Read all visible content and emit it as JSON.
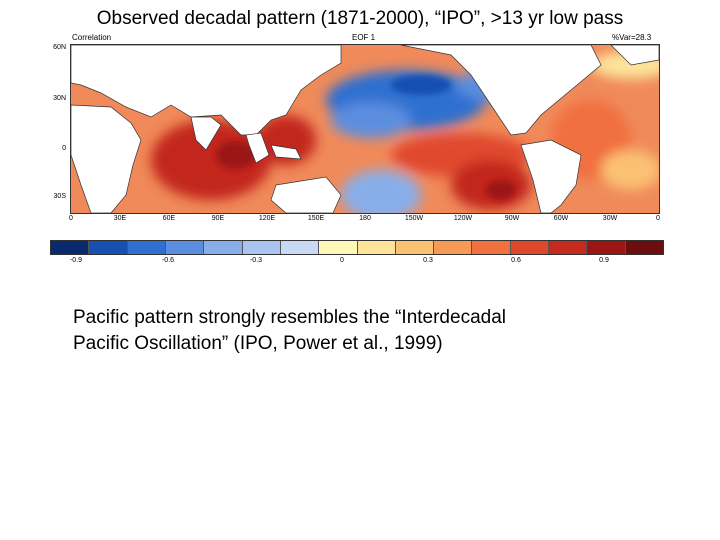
{
  "title": "Observed decadal pattern (1871-2000), “IPO”, >13 yr low pass",
  "map": {
    "left_label": "Correlation",
    "center_label": "EOF 1",
    "right_label": "%Var=28.3",
    "lat_labels": [
      "60N",
      "30N",
      "0",
      "30S"
    ],
    "lon_labels": [
      "0",
      "30E",
      "60E",
      "90E",
      "120E",
      "150E",
      "180",
      "150W",
      "120W",
      "90W",
      "60W",
      "30W",
      "0"
    ]
  },
  "colorbar": {
    "colors": [
      "#0a2a6e",
      "#1750b0",
      "#2f6fd0",
      "#5b8ee0",
      "#88aeea",
      "#a9c4f0",
      "#c8d9f6",
      "#fff7b8",
      "#fde49a",
      "#fbc173",
      "#f79a56",
      "#f0703f",
      "#e0482d",
      "#c62a1e",
      "#9d1512",
      "#6e0d0d"
    ],
    "labels": [
      "-0.9",
      "-0.6",
      "-0.3",
      "0",
      "0.3",
      "0.6",
      "0.9"
    ]
  },
  "note_lines": [
    "Pacific pattern strongly resembles the “Interdecadal",
    "Pacific Oscillation” (IPO, Power et al., 1999)"
  ]
}
